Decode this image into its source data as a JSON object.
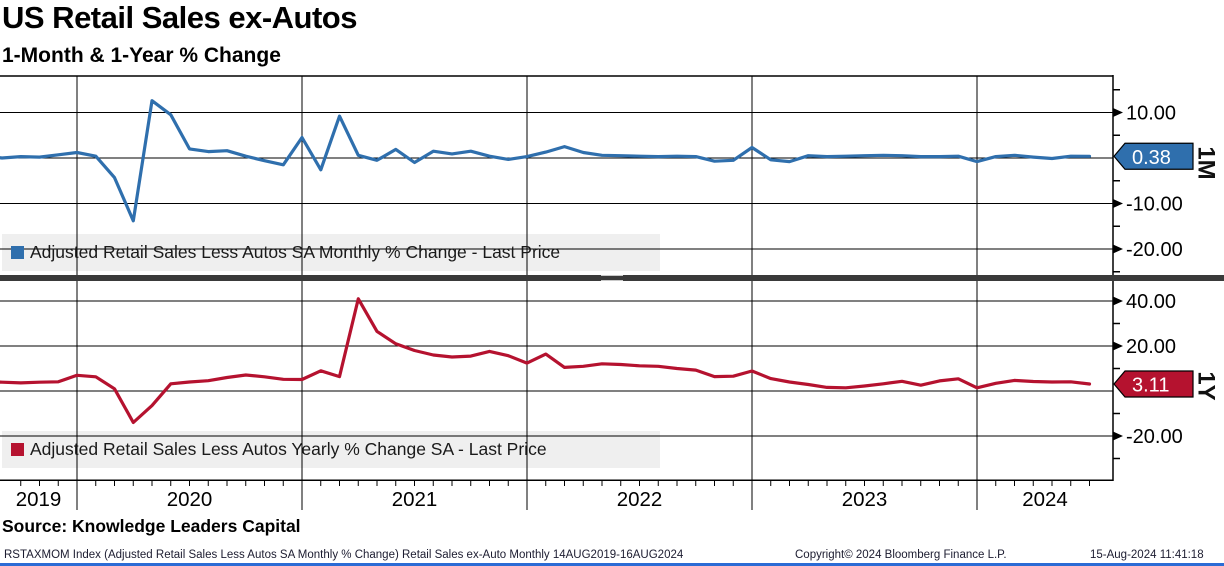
{
  "header": {
    "title": "US Retail Sales ex-Autos",
    "subtitle": "1-Month & 1-Year % Change"
  },
  "source_line": "Source: Knowledge Leaders Capital",
  "footer": {
    "ticker_info": "RSTAXMOM Index (Adjusted Retail Sales Less Autos SA Monthly % Change) Retail Sales ex-Auto  Monthly 14AUG2019-16AUG2024",
    "copyright": "Copyright© 2024 Bloomberg Finance L.P.",
    "timestamp": "15-Aug-2024 11:41:18"
  },
  "colors": {
    "blue": "#2F6FAD",
    "red": "#B5122F",
    "grid": "#000000",
    "divider": "#3A3A3A",
    "legend_bg": "#EFEFEF",
    "bottom_bar": "#2B6BD5"
  },
  "x_axis": {
    "years": [
      "2019",
      "2020",
      "2021",
      "2022",
      "2023",
      "2024"
    ],
    "start_month": "Aug 2019",
    "end_month": "Jul 2024",
    "frequency": "monthly"
  },
  "chart_data": [
    {
      "type": "line",
      "panel_label": "1M",
      "legend": "Adjusted Retail Sales Less Autos SA Monthly % Change - Last Price",
      "color_key": "blue",
      "last_price": 0.38,
      "last_price_label": "0.38",
      "ylim": [
        -26,
        18.5
      ],
      "gridlines": [
        10,
        0,
        -10,
        -20
      ],
      "yticks_labeled": [
        {
          "v": 10,
          "label": "10.00"
        },
        {
          "v": -10,
          "label": "-10.00"
        },
        {
          "v": -20,
          "label": "-20.00"
        }
      ],
      "yticks_minor": [
        15,
        5,
        -5,
        -15,
        -25
      ],
      "values": [
        0.6,
        0.0,
        0.3,
        0.2,
        0.7,
        1.2,
        0.4,
        -4.3,
        -13.8,
        12.6,
        9.5,
        2.0,
        1.4,
        1.6,
        0.4,
        -0.6,
        -1.5,
        4.5,
        -2.6,
        9.2,
        0.6,
        -0.5,
        1.9,
        -1.0,
        1.5,
        0.9,
        1.5,
        0.4,
        -0.3,
        0.3,
        1.3,
        2.5,
        1.2,
        0.6,
        0.5,
        0.4,
        0.3,
        0.4,
        0.3,
        -0.7,
        -0.5,
        2.3,
        -0.4,
        -0.8,
        0.5,
        0.3,
        0.4,
        0.5,
        0.6,
        0.5,
        0.3,
        0.3,
        0.4,
        -0.8,
        0.3,
        0.6,
        0.2,
        -0.1,
        0.4,
        0.38
      ]
    },
    {
      "type": "line",
      "panel_label": "1Y",
      "legend": "Adjusted Retail Sales Less Autos Yearly % Change SA - Last Price",
      "color_key": "red",
      "last_price": 3.11,
      "last_price_label": "3.11",
      "ylim": [
        -40,
        51
      ],
      "gridlines": [
        40,
        20,
        0,
        -20
      ],
      "yticks_labeled": [
        {
          "v": 40,
          "label": "40.00"
        },
        {
          "v": 20,
          "label": "20.00"
        },
        {
          "v": -20,
          "label": "-20.00"
        }
      ],
      "yticks_minor": [
        30,
        10,
        -10,
        -30
      ],
      "values": [
        4.2,
        3.9,
        3.6,
        3.9,
        4.1,
        7.0,
        6.3,
        1.0,
        -14.0,
        -6.5,
        3.2,
        4.0,
        4.6,
        6.0,
        7.1,
        6.3,
        5.2,
        5.1,
        9.0,
        6.4,
        41.0,
        26.5,
        21.0,
        18.0,
        16.0,
        15.1,
        15.5,
        17.6,
        15.7,
        12.4,
        16.4,
        10.5,
        11.0,
        12.1,
        11.8,
        11.2,
        11.0,
        10.0,
        9.3,
        6.4,
        6.6,
        8.9,
        5.5,
        4.0,
        2.9,
        1.6,
        1.4,
        2.2,
        3.2,
        4.3,
        2.6,
        4.5,
        5.4,
        1.4,
        3.4,
        4.7,
        4.2,
        4.0,
        4.1,
        3.11
      ]
    }
  ]
}
